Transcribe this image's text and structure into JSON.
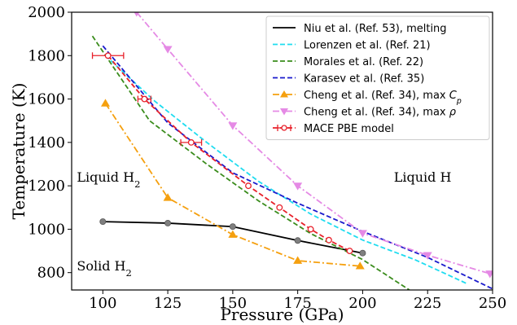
{
  "chart_data": {
    "type": "line",
    "xlabel": "Pressure (GPa)",
    "ylabel": "Temperature (K)",
    "xlim": [
      88,
      250
    ],
    "ylim": [
      720,
      2000
    ],
    "xticks": [
      100,
      125,
      150,
      175,
      200,
      225,
      250
    ],
    "yticks": [
      800,
      1000,
      1200,
      1400,
      1600,
      1800,
      2000
    ],
    "grid": false,
    "legend_position": "top-right",
    "annotations": [
      {
        "text": "Liquid H",
        "sub": "2",
        "x": 90,
        "y": 1220
      },
      {
        "text": "Liquid H",
        "sub": "",
        "x": 212,
        "y": 1220
      },
      {
        "text": "Solid H",
        "sub": "2",
        "x": 90,
        "y": 810
      }
    ],
    "series": [
      {
        "name": "Niu et al. (Ref. 53), melting",
        "color": "#000000",
        "linestyle": "solid",
        "marker": "circle-gray",
        "x": [
          100,
          125,
          150,
          175,
          200
        ],
        "y": [
          1035,
          1028,
          1012,
          948,
          890
        ]
      },
      {
        "name": "Lorenzen et al. (Ref. 21)",
        "color": "#1fdcf0",
        "linestyle": "dashed",
        "marker": "none",
        "x": [
          101,
          120,
          140,
          160,
          180,
          200,
          220,
          240
        ],
        "y": [
          1800,
          1590,
          1400,
          1220,
          1070,
          950,
          860,
          750
        ]
      },
      {
        "name": "Morales et al. (Ref. 22)",
        "color": "#3a8c1c",
        "linestyle": "dashed",
        "marker": "none",
        "x": [
          96,
          118,
          140,
          160,
          180,
          200,
          218
        ],
        "y": [
          1890,
          1500,
          1300,
          1130,
          980,
          860,
          720
        ]
      },
      {
        "name": "Karasev et al. (Ref. 35)",
        "color": "#1a1acc",
        "linestyle": "dashed",
        "marker": "none",
        "x": [
          100,
          125,
          150,
          175,
          200,
          225,
          250
        ],
        "y": [
          1845,
          1490,
          1260,
          1120,
          990,
          870,
          725
        ]
      },
      {
        "name": "Cheng et al. (Ref. 34), max",
        "symbol": "C",
        "symbol_sub": "p",
        "color": "#f5a00f",
        "linestyle": "dashdot",
        "marker": "triangle-up",
        "x": [
          101,
          125,
          150,
          175,
          199
        ],
        "y": [
          1580,
          1145,
          975,
          855,
          830
        ]
      },
      {
        "name": "Cheng et al. (Ref. 34), max",
        "symbol": "ρ",
        "symbol_sub": "",
        "color": "#e58ae5",
        "linestyle": "dashdot",
        "marker": "triangle-down",
        "x": [
          113,
          125,
          150,
          175,
          200,
          225,
          249
        ],
        "y": [
          2000,
          1830,
          1478,
          1200,
          982,
          880,
          795
        ]
      },
      {
        "name": "MACE PBE model",
        "color": "#e8202a",
        "linestyle": "dashed",
        "marker": "circle-open",
        "x": [
          102,
          116,
          134,
          156,
          168,
          180,
          187,
          195
        ],
        "y": [
          1800,
          1600,
          1400,
          1200,
          1100,
          1000,
          950,
          900
        ],
        "xerr": [
          6,
          2.5,
          4,
          0,
          0,
          0,
          0,
          0
        ]
      }
    ]
  }
}
